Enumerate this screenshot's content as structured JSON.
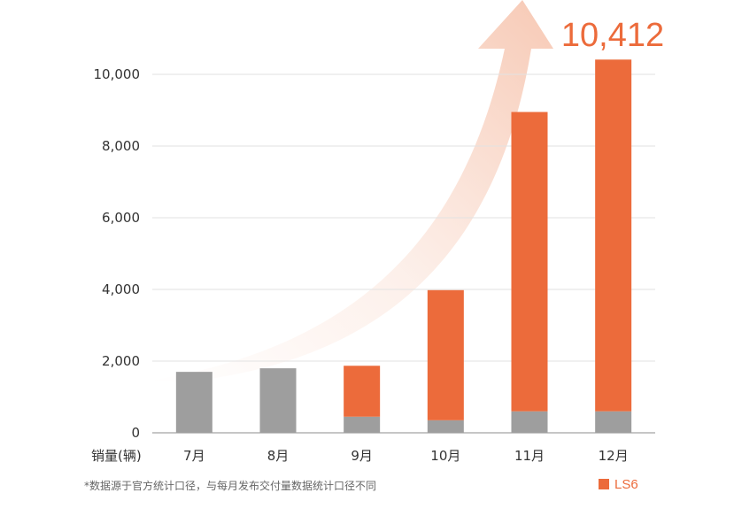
{
  "chart_data": {
    "type": "bar",
    "stacked": true,
    "unit_label": "销量(辆)",
    "categories": [
      "7月",
      "8月",
      "9月",
      "10月",
      "11月",
      "12月"
    ],
    "series": [
      {
        "name": "",
        "color": "#9e9e9e",
        "values": [
          1700,
          1800,
          450,
          350,
          600,
          600
        ]
      },
      {
        "name": "LS6",
        "color": "#ec6b3b",
        "values": [
          0,
          0,
          1420,
          3630,
          8350,
          9812
        ]
      }
    ],
    "ylim": [
      0,
      10000
    ],
    "yticks": [
      "0",
      "2,000",
      "4,000",
      "6,000",
      "8,000",
      "10,000"
    ],
    "callout": "10,412",
    "footnote": "*数据源于官方统计口径，与每月发布交付量数据统计口径不同",
    "legend": {
      "label": "LS6",
      "position": "bottom-right"
    },
    "grid": true
  }
}
